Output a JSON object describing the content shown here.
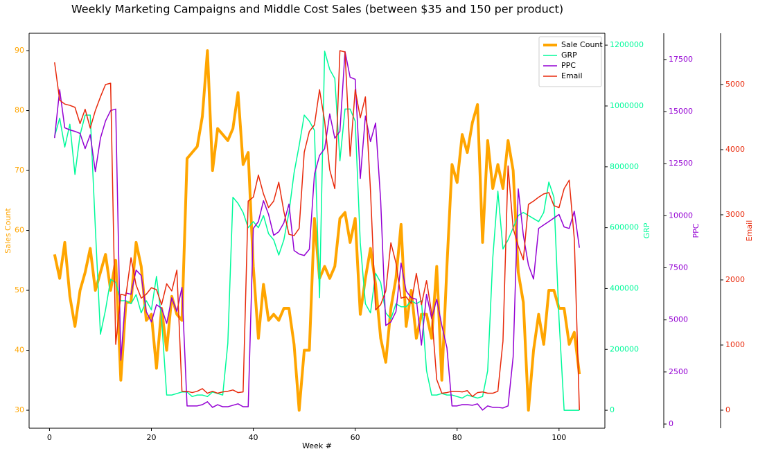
{
  "chart_data": {
    "type": "line",
    "title": "Weekly Marketing Campaigns and Middle Cost Sales (between $35 and 150 per product)",
    "xlabel": "Week #",
    "ylabel": "Sales Count",
    "y2label": "GRP",
    "y3label": "PPC",
    "y4label": "Email",
    "legend": "upper right",
    "grid": false,
    "xlim": [
      -4,
      109
    ],
    "xticks": [
      0,
      20,
      40,
      60,
      80,
      100
    ],
    "ylim": [
      27,
      92.9
    ],
    "yticks": [
      30,
      40,
      50,
      60,
      70,
      80,
      90
    ],
    "y2lim": [
      -59000,
      1239000
    ],
    "y2ticks": [
      0,
      200000,
      400000,
      600000,
      800000,
      1000000,
      1200000
    ],
    "y3lim": [
      -200,
      18760
    ],
    "y3ticks": [
      0,
      2500,
      5000,
      7500,
      10000,
      12500,
      15000,
      17500
    ],
    "y4lim": [
      -277,
      5787
    ],
    "y4ticks": [
      0,
      1000,
      2000,
      3000,
      4000,
      5000
    ],
    "x": [
      1,
      2,
      3,
      4,
      5,
      6,
      7,
      8,
      9,
      10,
      11,
      12,
      13,
      14,
      15,
      16,
      17,
      18,
      19,
      20,
      21,
      22,
      23,
      24,
      25,
      26,
      27,
      28,
      29,
      30,
      31,
      32,
      33,
      34,
      35,
      36,
      37,
      38,
      39,
      40,
      41,
      42,
      43,
      44,
      45,
      46,
      47,
      48,
      49,
      50,
      51,
      52,
      53,
      54,
      55,
      56,
      57,
      58,
      59,
      60,
      61,
      62,
      63,
      64,
      65,
      66,
      67,
      68,
      69,
      70,
      71,
      72,
      73,
      74,
      75,
      76,
      77,
      78,
      79,
      80,
      81,
      82,
      83,
      84,
      85,
      86,
      87,
      88,
      89,
      90,
      91,
      92,
      93,
      94,
      95,
      96,
      97,
      98,
      99,
      100,
      101,
      102,
      103,
      104
    ],
    "series": [
      {
        "name": "Sale Count",
        "color": "#ffa500",
        "axis": "y",
        "width": 4,
        "values": [
          56,
          52,
          58,
          49,
          44,
          50,
          53,
          57,
          50,
          53,
          56,
          50,
          55,
          35,
          48,
          48,
          58,
          54,
          45,
          46,
          37,
          47,
          40,
          49,
          46,
          45,
          72,
          73,
          74,
          79,
          90,
          70,
          77,
          76,
          75,
          77,
          83,
          71,
          73,
          54,
          42,
          51,
          45,
          46,
          45,
          47,
          47,
          41,
          30,
          40,
          40,
          62,
          52,
          54,
          52,
          54,
          62,
          63,
          58,
          62,
          46,
          52,
          57,
          51,
          42,
          38,
          47,
          52,
          61,
          44,
          50,
          42,
          46,
          46,
          42,
          54,
          35,
          54,
          71,
          68,
          76,
          73,
          78,
          81,
          58,
          75,
          67,
          71,
          67,
          75,
          70,
          53,
          48,
          30,
          40,
          46,
          41,
          50,
          50,
          47,
          47,
          41,
          43,
          36
        ]
      },
      {
        "name": "GRP",
        "color": "#00fa9a",
        "axis": "y2",
        "width": 1.5,
        "values": [
          900000,
          960000,
          865000,
          940000,
          775000,
          905000,
          970000,
          970000,
          600000,
          250000,
          330000,
          430000,
          420000,
          360000,
          360000,
          350000,
          380000,
          320000,
          360000,
          330000,
          440000,
          300000,
          50000,
          50000,
          55000,
          60000,
          60000,
          45000,
          50000,
          50000,
          45000,
          60000,
          55000,
          50000,
          220000,
          700000,
          680000,
          650000,
          600000,
          620000,
          600000,
          640000,
          580000,
          560000,
          510000,
          560000,
          650000,
          780000,
          870000,
          970000,
          950000,
          920000,
          370000,
          1180000,
          1120000,
          1090000,
          820000,
          990000,
          990000,
          950000,
          550000,
          350000,
          320000,
          450000,
          420000,
          320000,
          300000,
          350000,
          340000,
          340000,
          360000,
          350000,
          360000,
          130000,
          50000,
          50000,
          55000,
          50000,
          50000,
          45000,
          40000,
          50000,
          45000,
          40000,
          45000,
          130000,
          500000,
          720000,
          530000,
          560000,
          600000,
          640000,
          650000,
          640000,
          630000,
          620000,
          650000,
          750000,
          700000,
          300000,
          0,
          0,
          0,
          0
        ]
      },
      {
        "name": "PPC",
        "color": "#9400d3",
        "axis": "y3",
        "width": 1.5,
        "values": [
          13730,
          16050,
          14220,
          14120,
          14050,
          13950,
          13220,
          13890,
          12120,
          13720,
          14550,
          15050,
          15120,
          3060,
          6290,
          6230,
          7390,
          7130,
          5400,
          4900,
          5730,
          5560,
          4830,
          6060,
          5400,
          6560,
          870,
          870,
          870,
          930,
          1070,
          800,
          930,
          830,
          830,
          900,
          970,
          830,
          830,
          9390,
          9720,
          10720,
          10060,
          9060,
          9230,
          9660,
          10560,
          8330,
          8160,
          8090,
          8390,
          11990,
          12890,
          13220,
          14890,
          13720,
          14050,
          17880,
          16650,
          16550,
          11790,
          14790,
          13560,
          14450,
          10720,
          4730,
          4900,
          5400,
          7730,
          6390,
          6060,
          5990,
          3790,
          6230,
          5060,
          5990,
          4730,
          3660,
          870,
          870,
          930,
          930,
          900,
          970,
          670,
          870,
          800,
          800,
          770,
          870,
          3230,
          11290,
          9060,
          7630,
          6960,
          9390,
          9560,
          9720,
          9890,
          10060,
          9460,
          9390,
          10220,
          8460
        ]
      },
      {
        "name": "Email",
        "color": "#e8290b",
        "axis": "y4",
        "width": 1.5,
        "values": [
          5340,
          4760,
          4700,
          4680,
          4650,
          4400,
          4620,
          4330,
          4600,
          4810,
          5000,
          5020,
          1010,
          1780,
          1760,
          2340,
          1920,
          1720,
          1780,
          1880,
          1850,
          1620,
          1940,
          1830,
          2150,
          290,
          290,
          270,
          290,
          330,
          260,
          290,
          260,
          280,
          290,
          310,
          270,
          280,
          3210,
          3270,
          3610,
          3320,
          3110,
          3210,
          3500,
          3050,
          2700,
          2680,
          2790,
          3960,
          4280,
          4380,
          4920,
          4440,
          3690,
          3400,
          5520,
          5500,
          3900,
          4920,
          4490,
          4810,
          3370,
          1540,
          1620,
          1830,
          2570,
          2260,
          1720,
          1740,
          1640,
          2100,
          1620,
          1990,
          1490,
          470,
          260,
          270,
          290,
          290,
          280,
          300,
          210,
          270,
          280,
          260,
          260,
          290,
          1060,
          3750,
          2790,
          2520,
          2310,
          3160,
          3210,
          3270,
          3320,
          3340,
          3140,
          3110,
          3400,
          3530,
          2630,
          0
        ]
      }
    ]
  }
}
